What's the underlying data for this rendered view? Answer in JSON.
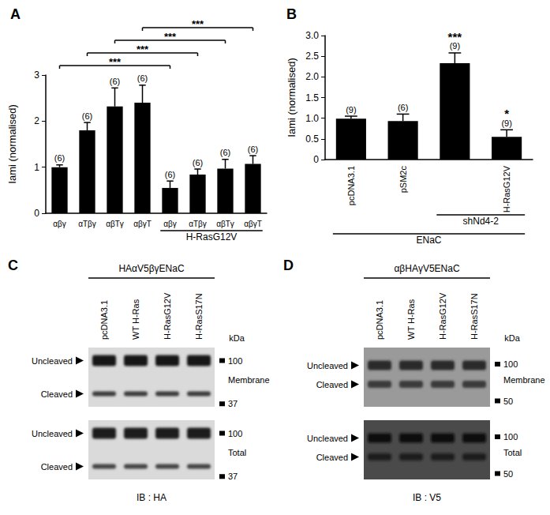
{
  "chart_data": [
    {
      "type": "bar",
      "title": "A",
      "ylabel": "Iami (normalised)",
      "categories": [
        "αβγ",
        "αTβγ",
        "αβTγ",
        "αβγT",
        "αβγ",
        "αTβγ",
        "αβTγ",
        "αβγT"
      ],
      "values": [
        1.0,
        1.8,
        2.32,
        2.4,
        0.55,
        0.84,
        0.97,
        1.07
      ],
      "errors": [
        0.05,
        0.17,
        0.4,
        0.38,
        0.15,
        0.12,
        0.2,
        0.18
      ],
      "n_labels": [
        "(6)",
        "(6)",
        "(6)",
        "(6)",
        "(6)",
        "(6)",
        "(6)",
        "(6)"
      ],
      "groups": [
        {
          "label": "H-RasG12V",
          "from": 4,
          "to": 7
        }
      ],
      "comparisons": [
        {
          "from": 0,
          "to": 4,
          "label": "***"
        },
        {
          "from": 1,
          "to": 5,
          "label": "***"
        },
        {
          "from": 2,
          "to": 6,
          "label": "***"
        },
        {
          "from": 3,
          "to": 7,
          "label": "***"
        }
      ],
      "color": "#000000",
      "ylim": [
        0,
        3
      ],
      "yticks": [
        0,
        1,
        2,
        3
      ],
      "grid": false
    },
    {
      "type": "bar",
      "title": "B",
      "ylabel": "Iami (normalised)",
      "categories": [
        "pcDNA3.1",
        "pSM2c",
        null,
        "H-RasG12V"
      ],
      "values": [
        0.99,
        0.93,
        2.33,
        0.55
      ],
      "errors": [
        0.06,
        0.17,
        0.25,
        0.17
      ],
      "n_labels": [
        "(9)",
        "(6)",
        "(9)",
        "(9)"
      ],
      "sig_labels": [
        null,
        null,
        "***",
        "*"
      ],
      "groups": [
        {
          "label": "shNd4-2",
          "from": 2,
          "to": 3
        },
        {
          "label": "ENaC",
          "from": 0,
          "to": 3
        }
      ],
      "color": "#000000",
      "ylim": [
        0,
        3
      ],
      "yticks": [
        0,
        0.5,
        {
          "value": 1,
          "label": "1.0"
        },
        1.5,
        {
          "value": 2,
          "label": "2.0"
        },
        2.5,
        {
          "value": 3,
          "label": "3.0"
        }
      ],
      "grid": false
    }
  ],
  "blots": [
    {
      "title": "C",
      "header": "HAαV5βγENaC",
      "lanes": [
        "pcDNA3.1",
        "WT H-Ras",
        "H-RasG12V",
        "H-RasS17N"
      ],
      "unit": "kDa",
      "band_labels": [
        "Uncleaved",
        "Cleaved"
      ],
      "rows": [
        {
          "label": "Membrane",
          "markers": [
            100,
            37
          ]
        },
        {
          "label": "Total",
          "markers": [
            100,
            37
          ]
        }
      ],
      "antibody": "IB : HA"
    },
    {
      "title": "D",
      "header": "αβHAγV5ENaC",
      "lanes": [
        "pcDNA3.1",
        "WT H-Ras",
        "H-RasG12V",
        "H-RasS17N"
      ],
      "unit": "kDa",
      "band_labels": [
        "Uncleaved",
        "Cleaved"
      ],
      "rows": [
        {
          "label": "Membrane",
          "markers": [
            100,
            50
          ]
        },
        {
          "label": "Total",
          "markers": [
            100,
            50
          ]
        }
      ],
      "antibody": "IB : V5"
    }
  ]
}
